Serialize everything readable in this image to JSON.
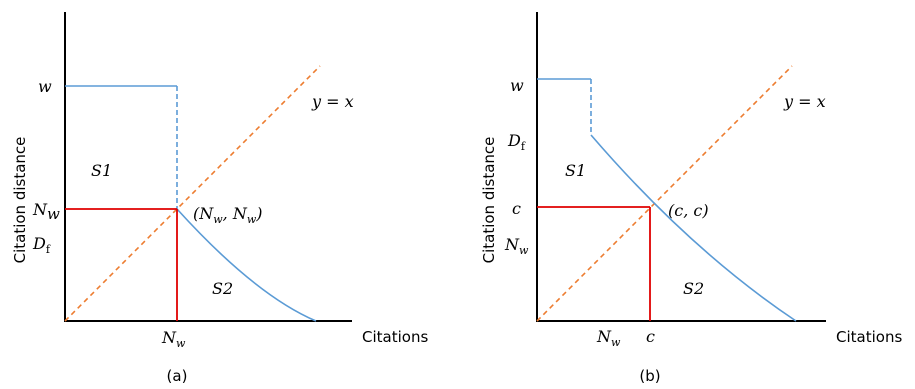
{
  "panels": [
    {
      "caption": "(a)",
      "ylabel": "Citation distance",
      "xlabel": "Citations",
      "line_label": "y = x",
      "y_ticks": [
        "w",
        "N_w",
        "D_f"
      ],
      "x_ticks": [
        "N_w"
      ],
      "point_label": "(N_w, N_w)",
      "regions": [
        "S1",
        "S2"
      ]
    },
    {
      "caption": "(b)",
      "ylabel": "Citation distance",
      "xlabel": "Citations",
      "line_label": "y = x",
      "y_ticks": [
        "w",
        "D_f",
        "c",
        "N_w"
      ],
      "x_ticks": [
        "N_w",
        "c"
      ],
      "point_label": "(c, c)",
      "regions": [
        "S1",
        "S2"
      ]
    }
  ],
  "colors": {
    "curve": "#5b9bd5",
    "diagonal": "#ed7d31",
    "guide": "#e00000"
  }
}
